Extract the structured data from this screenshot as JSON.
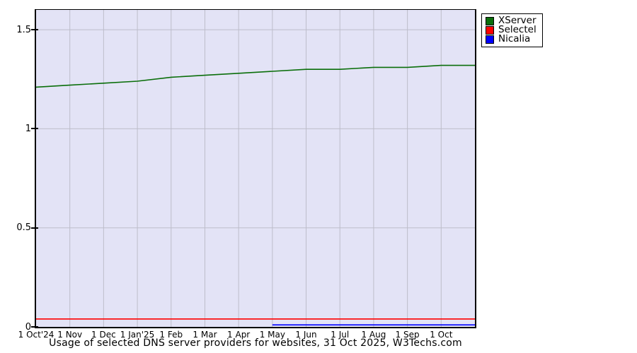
{
  "chart_data": {
    "type": "line",
    "title": "Usage of selected DNS server providers for websites, 31 Oct 2025, W3Techs.com",
    "xlabel": "",
    "ylabel": "",
    "xlim": [
      0,
      13
    ],
    "ylim": [
      0,
      1.6
    ],
    "grid": true,
    "legend_position": "top-right",
    "x_tick_labels": [
      "1 Oct'24",
      "1 Nov",
      "1 Dec",
      "1 Jan'25",
      "1 Feb",
      "1 Mar",
      "1 Apr",
      "1 May",
      "1 Jun",
      "1 Jul",
      "1 Aug",
      "1 Sep",
      "1 Oct"
    ],
    "y_ticks": [
      0,
      0.5,
      1,
      1.5
    ],
    "y_tick_labels": [
      "0",
      "0.5",
      "1",
      "1.5"
    ],
    "x": [
      0,
      1,
      2,
      3,
      4,
      5,
      6,
      7,
      8,
      9,
      10,
      11,
      12,
      13
    ],
    "series": [
      {
        "name": "XServer",
        "color": "#0a6e0a",
        "values": [
          1.21,
          1.22,
          1.23,
          1.24,
          1.26,
          1.27,
          1.28,
          1.29,
          1.3,
          1.3,
          1.31,
          1.31,
          1.32,
          1.32
        ]
      },
      {
        "name": "Selectel",
        "color": "#ff0000",
        "values": [
          0.04,
          0.04,
          0.04,
          0.04,
          0.04,
          0.04,
          0.04,
          0.04,
          0.04,
          0.04,
          0.04,
          0.04,
          0.04,
          0.04
        ]
      },
      {
        "name": "Nicalia",
        "color": "#0000ff",
        "values": [
          null,
          null,
          null,
          null,
          null,
          null,
          null,
          0.01,
          0.01,
          0.01,
          0.01,
          0.01,
          0.01,
          0.01
        ]
      }
    ],
    "colors": {
      "plot_background": "#e3e3f6",
      "gridline": "#bdbdca",
      "axis": "#000000"
    }
  }
}
